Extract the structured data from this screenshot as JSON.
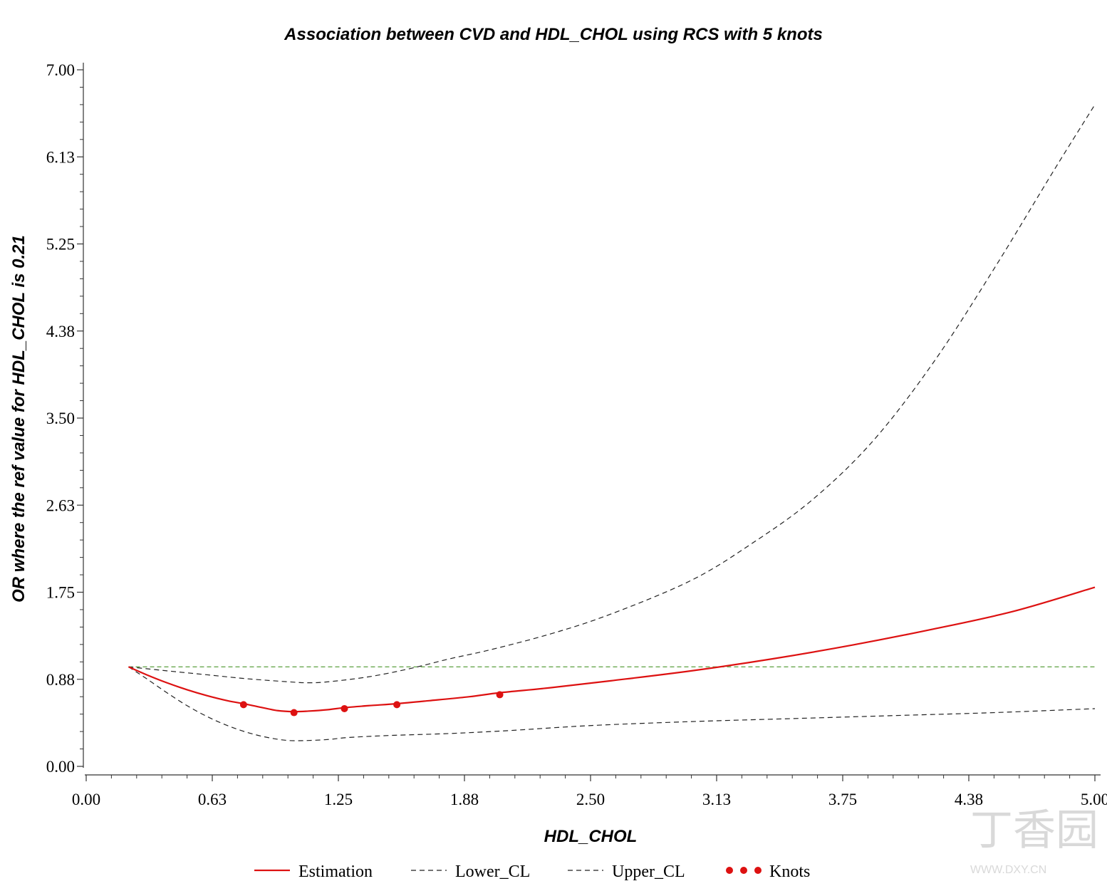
{
  "chart_data": {
    "type": "line",
    "title": "Association between CVD and HDL_CHOL using RCS with 5 knots",
    "xlabel": "HDL_CHOL",
    "ylabel": "OR where the ref value for HDL_CHOL is 0.21",
    "xlim": [
      0,
      5.0
    ],
    "ylim": [
      0,
      7.0
    ],
    "x_ticks": [
      "0.00",
      "0.63",
      "1.25",
      "1.88",
      "2.50",
      "3.13",
      "3.75",
      "4.38",
      "5.00"
    ],
    "y_ticks": [
      "0.00",
      "0.88",
      "1.75",
      "2.63",
      "3.50",
      "4.38",
      "5.25",
      "6.13",
      "7.00"
    ],
    "reference_line": {
      "y": 1.0,
      "color": "#6aa84f",
      "style": "dashed"
    },
    "series": [
      {
        "name": "Estimation",
        "color": "#dd1111",
        "style": "solid",
        "x": [
          0.21,
          0.3,
          0.4,
          0.5,
          0.6,
          0.7,
          0.78,
          0.85,
          0.95,
          1.03,
          1.1,
          1.2,
          1.28,
          1.4,
          1.54,
          1.7,
          1.9,
          2.05,
          2.3,
          2.6,
          3.0,
          3.4,
          3.8,
          4.2,
          4.6,
          5.0
        ],
        "values": [
          1.0,
          0.92,
          0.84,
          0.77,
          0.71,
          0.66,
          0.63,
          0.6,
          0.56,
          0.55,
          0.555,
          0.57,
          0.59,
          0.61,
          0.63,
          0.66,
          0.7,
          0.74,
          0.79,
          0.86,
          0.96,
          1.08,
          1.22,
          1.38,
          1.56,
          1.8
        ]
      },
      {
        "name": "Lower_CL",
        "color": "#222222",
        "style": "dashed",
        "x": [
          0.21,
          0.3,
          0.4,
          0.5,
          0.6,
          0.7,
          0.8,
          0.9,
          1.0,
          1.1,
          1.2,
          1.3,
          1.5,
          1.8,
          2.1,
          2.5,
          3.0,
          3.5,
          4.0,
          4.5,
          5.0
        ],
        "values": [
          1.0,
          0.88,
          0.74,
          0.61,
          0.5,
          0.41,
          0.34,
          0.29,
          0.26,
          0.26,
          0.27,
          0.29,
          0.31,
          0.33,
          0.36,
          0.41,
          0.45,
          0.48,
          0.51,
          0.54,
          0.58
        ]
      },
      {
        "name": "Upper_CL",
        "color": "#222222",
        "style": "dashed",
        "x": [
          0.21,
          0.4,
          0.6,
          0.8,
          1.0,
          1.1,
          1.2,
          1.4,
          1.6,
          1.8,
          2.0,
          2.3,
          2.6,
          3.0,
          3.3,
          3.6,
          3.9,
          4.2,
          4.5,
          4.8,
          5.0
        ],
        "values": [
          1.0,
          0.96,
          0.92,
          0.88,
          0.85,
          0.84,
          0.85,
          0.9,
          0.98,
          1.08,
          1.17,
          1.33,
          1.53,
          1.87,
          2.24,
          2.68,
          3.27,
          4.06,
          5.0,
          6.0,
          6.65
        ]
      },
      {
        "name": "Knots",
        "color": "#dd1111",
        "style": "markers",
        "x": [
          0.78,
          1.03,
          1.28,
          1.54,
          2.05
        ],
        "values": [
          0.62,
          0.54,
          0.58,
          0.62,
          0.72
        ]
      }
    ],
    "legend": {
      "placement": "bottom",
      "entries": [
        "Estimation",
        "Lower_CL",
        "Upper_CL",
        "Knots"
      ]
    },
    "grid": false
  },
  "watermark": {
    "text": "丁香园",
    "subtext": "WWW.DXY.CN"
  }
}
